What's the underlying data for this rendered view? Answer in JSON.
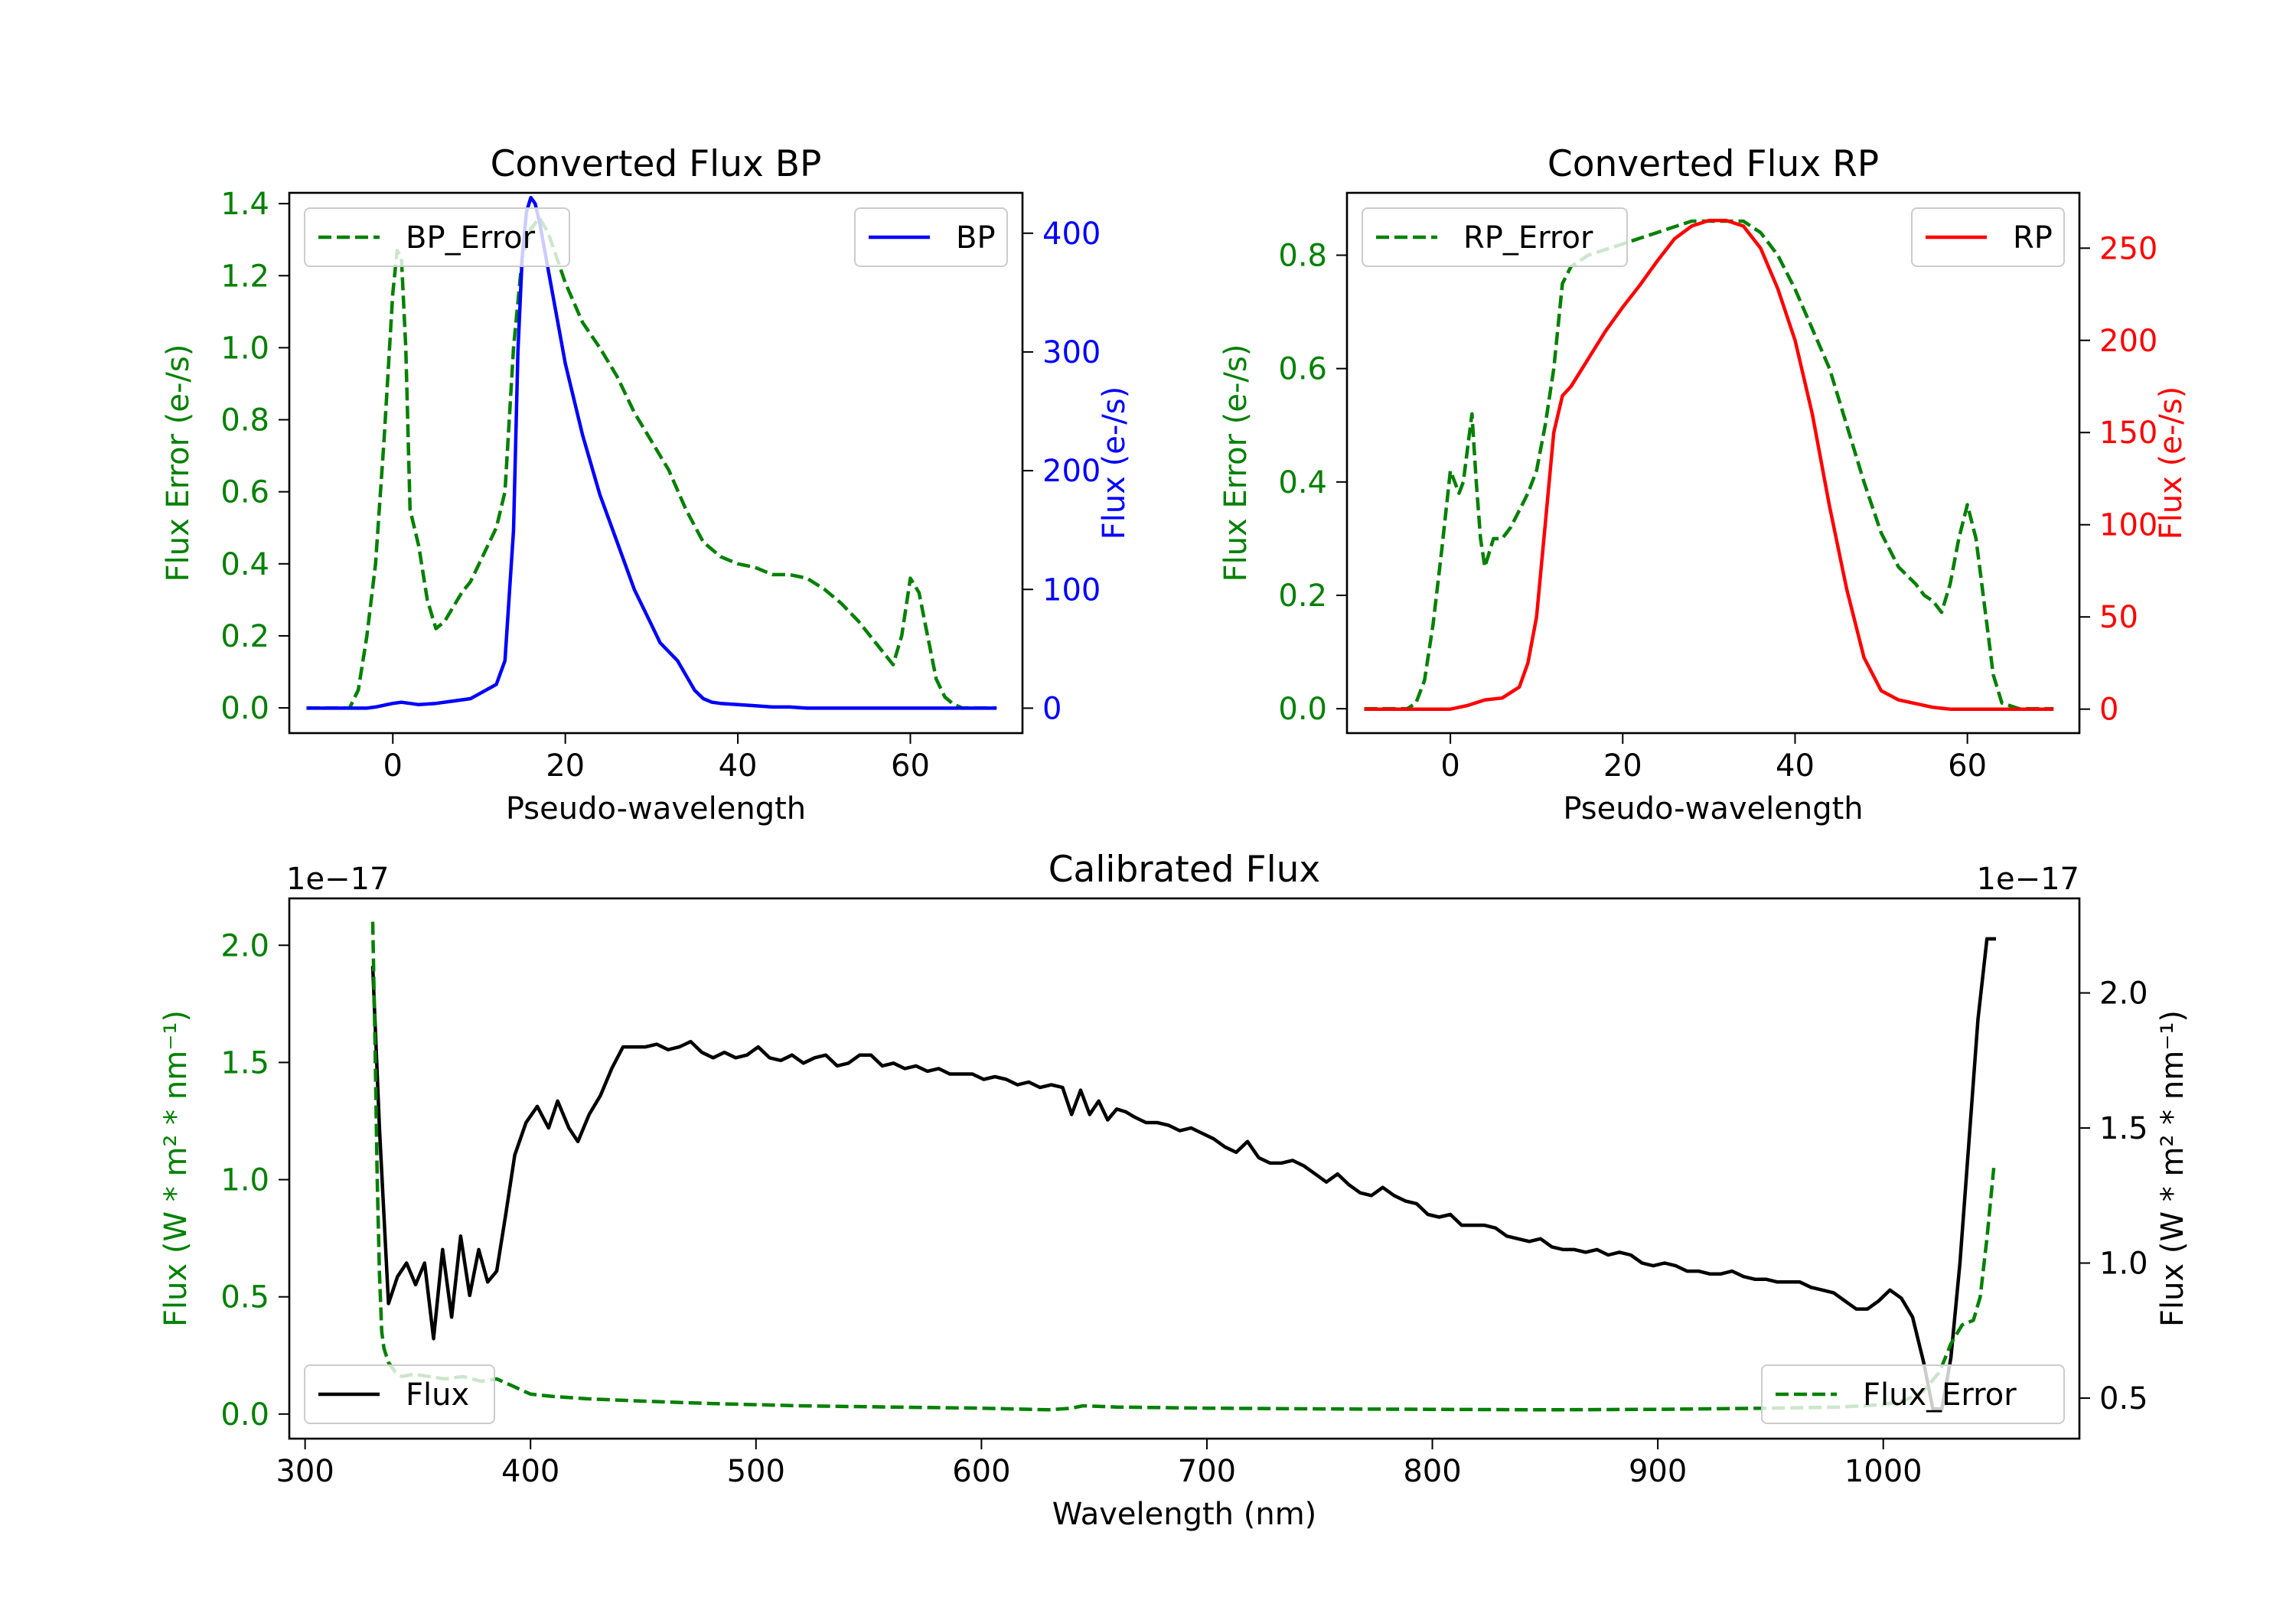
{
  "chart_data": [
    {
      "type": "line",
      "title": "Converted Flux BP",
      "xlabel": "Pseudo-wavelength",
      "xlim": [
        -12,
        73
      ],
      "xticks": [
        0,
        20,
        40,
        60
      ],
      "left_axis": {
        "label": "Flux Error (e-/s)",
        "color": "#008000",
        "ylim": [
          -0.07,
          1.43
        ],
        "ticks": [
          0.0,
          0.2,
          0.4,
          0.6,
          0.8,
          1.0,
          1.2,
          1.4
        ],
        "tick_labels": [
          "0.0",
          "0.2",
          "0.4",
          "0.6",
          "0.8",
          "1.0",
          "1.2",
          "1.4"
        ]
      },
      "right_axis": {
        "label": "Flux (e-/s)",
        "color": "#0000ff",
        "ylim": [
          -21,
          434
        ],
        "ticks": [
          0,
          100,
          200,
          300,
          400
        ],
        "tick_labels": [
          "0",
          "100",
          "200",
          "300",
          "400"
        ]
      },
      "series": [
        {
          "name": "BP_Error",
          "axis": "left",
          "color": "#008000",
          "style": "dashed",
          "legend": "top-left",
          "x": [
            -10,
            -5,
            -4,
            -3,
            -2,
            -1,
            0,
            0.5,
            1,
            1.5,
            2,
            3,
            4,
            5,
            6,
            7,
            8,
            9,
            10,
            11,
            12,
            13,
            14,
            15,
            16,
            17,
            18,
            19,
            20,
            22,
            24,
            26,
            28,
            30,
            32,
            34,
            36,
            38,
            40,
            42,
            44,
            46,
            48,
            50,
            52,
            54,
            56,
            57,
            58,
            59,
            60,
            61,
            62,
            63,
            64,
            65,
            66,
            67,
            68,
            70
          ],
          "y": [
            0.0,
            0.0,
            0.05,
            0.2,
            0.4,
            0.75,
            1.15,
            1.27,
            1.25,
            1.0,
            0.55,
            0.45,
            0.3,
            0.22,
            0.24,
            0.28,
            0.32,
            0.35,
            0.4,
            0.45,
            0.5,
            0.6,
            1.0,
            1.25,
            1.33,
            1.36,
            1.32,
            1.25,
            1.18,
            1.07,
            1.0,
            0.92,
            0.82,
            0.74,
            0.66,
            0.55,
            0.46,
            0.42,
            0.4,
            0.39,
            0.37,
            0.37,
            0.36,
            0.33,
            0.29,
            0.24,
            0.18,
            0.15,
            0.12,
            0.2,
            0.36,
            0.32,
            0.2,
            0.08,
            0.03,
            0.01,
            0.0,
            0.0,
            0.0,
            0.0
          ]
        },
        {
          "name": "BP",
          "axis": "right",
          "color": "#0000ff",
          "style": "solid",
          "legend": "top-right",
          "x": [
            -10,
            -5,
            -3,
            -2,
            0,
            1,
            2,
            3,
            5,
            7,
            9,
            10,
            12,
            13,
            14,
            14.5,
            15,
            15.5,
            16,
            16.5,
            17,
            18,
            20,
            22,
            24,
            26,
            28,
            30,
            31,
            33,
            35,
            36,
            37,
            38,
            40,
            42,
            44,
            46,
            48,
            50,
            55,
            60,
            62,
            65,
            70
          ],
          "y": [
            0,
            0,
            0,
            1,
            4,
            5,
            4,
            3,
            4,
            6,
            8,
            12,
            20,
            40,
            150,
            300,
            380,
            418,
            430,
            425,
            410,
            370,
            290,
            230,
            180,
            140,
            100,
            70,
            55,
            40,
            15,
            8,
            5,
            4,
            3,
            2,
            1,
            1,
            0,
            0,
            0,
            0,
            0,
            0,
            0
          ]
        }
      ]
    },
    {
      "type": "line",
      "title": "Converted Flux RP",
      "xlabel": "Pseudo-wavelength",
      "xlim": [
        -12,
        73
      ],
      "xticks": [
        0,
        20,
        40,
        60
      ],
      "left_axis": {
        "label": "Flux Error (e-/s)",
        "color": "#008000",
        "ylim": [
          -0.043,
          0.91
        ],
        "ticks": [
          0.0,
          0.2,
          0.4,
          0.6,
          0.8
        ],
        "tick_labels": [
          "0.0",
          "0.2",
          "0.4",
          "0.6",
          "0.8"
        ]
      },
      "right_axis": {
        "label": "Flux (e-/s)",
        "color": "#ff0000",
        "ylim": [
          -13,
          280
        ],
        "ticks": [
          0,
          50,
          100,
          150,
          200,
          250
        ],
        "tick_labels": [
          "0",
          "50",
          "100",
          "150",
          "200",
          "250"
        ]
      },
      "series": [
        {
          "name": "RP_Error",
          "axis": "left",
          "color": "#008000",
          "style": "dashed",
          "legend": "top-left",
          "x": [
            -10,
            -5,
            -4,
            -3,
            -2,
            -1,
            0,
            1,
            1.5,
            2,
            2.5,
            3,
            3.5,
            4,
            5,
            6,
            7,
            8,
            9,
            10,
            11,
            12,
            13,
            14,
            16,
            18,
            20,
            22,
            24,
            26,
            28,
            30,
            32,
            34,
            36,
            38,
            40,
            42,
            44,
            46,
            48,
            50,
            52,
            54,
            55,
            56,
            57,
            58,
            59,
            60,
            61,
            62,
            63,
            64,
            66,
            70
          ],
          "y": [
            0.0,
            0.0,
            0.01,
            0.05,
            0.15,
            0.28,
            0.42,
            0.38,
            0.4,
            0.46,
            0.52,
            0.4,
            0.3,
            0.25,
            0.3,
            0.3,
            0.32,
            0.35,
            0.38,
            0.42,
            0.5,
            0.6,
            0.75,
            0.78,
            0.8,
            0.81,
            0.82,
            0.83,
            0.84,
            0.85,
            0.86,
            0.86,
            0.86,
            0.86,
            0.84,
            0.8,
            0.74,
            0.67,
            0.6,
            0.5,
            0.4,
            0.31,
            0.25,
            0.22,
            0.2,
            0.19,
            0.17,
            0.22,
            0.3,
            0.36,
            0.3,
            0.18,
            0.06,
            0.01,
            0.0,
            0.0
          ]
        },
        {
          "name": "RP",
          "axis": "right",
          "color": "#ff0000",
          "style": "solid",
          "legend": "top-right",
          "x": [
            -10,
            -5,
            -3,
            0,
            2,
            4,
            6,
            8,
            9,
            10,
            11,
            12,
            13,
            14,
            16,
            18,
            20,
            22,
            24,
            26,
            28,
            30,
            32,
            34,
            36,
            38,
            40,
            42,
            44,
            46,
            48,
            50,
            52,
            54,
            56,
            58,
            60,
            62,
            65,
            70
          ],
          "y": [
            0,
            0,
            0,
            0,
            2,
            5,
            6,
            12,
            25,
            50,
            100,
            150,
            170,
            175,
            190,
            205,
            218,
            230,
            243,
            255,
            262,
            265,
            265,
            262,
            250,
            228,
            200,
            160,
            110,
            65,
            28,
            10,
            5,
            3,
            1,
            0,
            0,
            0,
            0,
            0
          ]
        }
      ]
    },
    {
      "type": "line",
      "title": "Calibrated Flux",
      "xlabel": "Wavelength (nm)",
      "xlim": [
        293,
        1087
      ],
      "xticks": [
        300,
        400,
        500,
        600,
        700,
        800,
        900,
        1000
      ],
      "left_axis": {
        "label": "Flux (W * m² * nm⁻¹)",
        "color": "#008000",
        "offset_text": "1e−17",
        "ylim": [
          -0.105,
          2.2
        ],
        "ticks": [
          0.0,
          0.5,
          1.0,
          1.5,
          2.0
        ],
        "tick_labels": [
          "0.0",
          "0.5",
          "1.0",
          "1.5",
          "2.0"
        ]
      },
      "right_axis": {
        "label": "Flux (W * m² * nm⁻¹)",
        "color": "#000000",
        "offset_text": "1e−17",
        "ylim": [
          0.35,
          2.35
        ],
        "ticks": [
          0.5,
          1.0,
          1.5,
          2.0
        ],
        "tick_labels": [
          "0.5",
          "1.0",
          "1.5",
          "2.0"
        ]
      },
      "series": [
        {
          "name": "Flux",
          "axis": "right",
          "color": "#000000",
          "style": "solid",
          "legend": "bottom-left",
          "x": [
            330,
            333,
            337,
            341,
            345,
            349,
            353,
            357,
            361,
            365,
            369,
            373,
            377,
            381,
            385,
            389,
            393,
            398,
            403,
            408,
            412,
            417,
            421,
            426,
            431,
            436,
            441,
            446,
            451,
            456,
            461,
            466,
            471,
            476,
            481,
            486,
            491,
            496,
            501,
            506,
            511,
            516,
            521,
            526,
            531,
            536,
            541,
            546,
            551,
            556,
            561,
            566,
            571,
            576,
            581,
            586,
            591,
            596,
            601,
            606,
            611,
            616,
            621,
            626,
            631,
            636,
            640,
            644,
            648,
            652,
            656,
            660,
            664,
            668,
            673,
            678,
            683,
            688,
            693,
            698,
            703,
            708,
            713,
            718,
            723,
            728,
            733,
            738,
            743,
            748,
            753,
            758,
            763,
            768,
            773,
            778,
            783,
            788,
            793,
            798,
            803,
            808,
            813,
            818,
            823,
            828,
            833,
            838,
            843,
            848,
            853,
            858,
            863,
            868,
            873,
            878,
            883,
            888,
            893,
            898,
            903,
            908,
            913,
            918,
            923,
            928,
            933,
            938,
            943,
            948,
            953,
            958,
            963,
            968,
            973,
            978,
            983,
            988,
            993,
            998,
            1003,
            1008,
            1013,
            1018,
            1022,
            1026,
            1030,
            1034,
            1038,
            1042,
            1046,
            1050
          ],
          "y": [
            2.1,
            1.5,
            0.85,
            0.95,
            1.0,
            0.92,
            1.0,
            0.72,
            1.05,
            0.8,
            1.1,
            0.88,
            1.05,
            0.93,
            0.97,
            1.18,
            1.4,
            1.52,
            1.58,
            1.5,
            1.6,
            1.5,
            1.45,
            1.55,
            1.62,
            1.72,
            1.8,
            1.8,
            1.8,
            1.81,
            1.79,
            1.8,
            1.82,
            1.78,
            1.76,
            1.78,
            1.76,
            1.77,
            1.8,
            1.76,
            1.75,
            1.77,
            1.74,
            1.76,
            1.77,
            1.73,
            1.74,
            1.77,
            1.77,
            1.73,
            1.74,
            1.72,
            1.73,
            1.71,
            1.72,
            1.7,
            1.7,
            1.7,
            1.68,
            1.69,
            1.68,
            1.66,
            1.67,
            1.65,
            1.66,
            1.65,
            1.55,
            1.64,
            1.55,
            1.6,
            1.53,
            1.57,
            1.56,
            1.54,
            1.52,
            1.52,
            1.51,
            1.49,
            1.5,
            1.48,
            1.46,
            1.43,
            1.41,
            1.45,
            1.39,
            1.37,
            1.37,
            1.38,
            1.36,
            1.33,
            1.3,
            1.33,
            1.29,
            1.26,
            1.25,
            1.28,
            1.25,
            1.23,
            1.22,
            1.18,
            1.17,
            1.18,
            1.14,
            1.14,
            1.14,
            1.13,
            1.1,
            1.09,
            1.08,
            1.09,
            1.06,
            1.05,
            1.05,
            1.04,
            1.05,
            1.03,
            1.04,
            1.03,
            1.0,
            0.99,
            1.0,
            0.99,
            0.97,
            0.97,
            0.96,
            0.96,
            0.97,
            0.95,
            0.94,
            0.94,
            0.93,
            0.93,
            0.93,
            0.91,
            0.9,
            0.89,
            0.86,
            0.83,
            0.83,
            0.86,
            0.9,
            0.87,
            0.8,
            0.63,
            0.46,
            0.46,
            0.65,
            1.0,
            1.45,
            1.9,
            2.2,
            2.2
          ]
        },
        {
          "name": "Flux_Error",
          "axis": "left",
          "color": "#008000",
          "style": "dashed",
          "legend": "bottom-right",
          "x": [
            330,
            331,
            332,
            333,
            334,
            335,
            337,
            340,
            343,
            348,
            355,
            362,
            370,
            378,
            385,
            392,
            400,
            410,
            425,
            450,
            480,
            520,
            560,
            600,
            630,
            640,
            645,
            660,
            700,
            750,
            800,
            850,
            900,
            950,
            980,
            1000,
            1010,
            1018,
            1025,
            1030,
            1035,
            1040,
            1043,
            1046,
            1049
          ],
          "y": [
            2.1,
            1.6,
            1.0,
            0.6,
            0.35,
            0.28,
            0.22,
            0.18,
            0.16,
            0.17,
            0.16,
            0.15,
            0.16,
            0.14,
            0.15,
            0.12,
            0.085,
            0.075,
            0.065,
            0.055,
            0.045,
            0.035,
            0.03,
            0.025,
            0.018,
            0.025,
            0.035,
            0.03,
            0.025,
            0.022,
            0.02,
            0.018,
            0.02,
            0.025,
            0.03,
            0.04,
            0.06,
            0.1,
            0.18,
            0.3,
            0.38,
            0.4,
            0.5,
            0.75,
            1.05
          ]
        }
      ]
    }
  ]
}
